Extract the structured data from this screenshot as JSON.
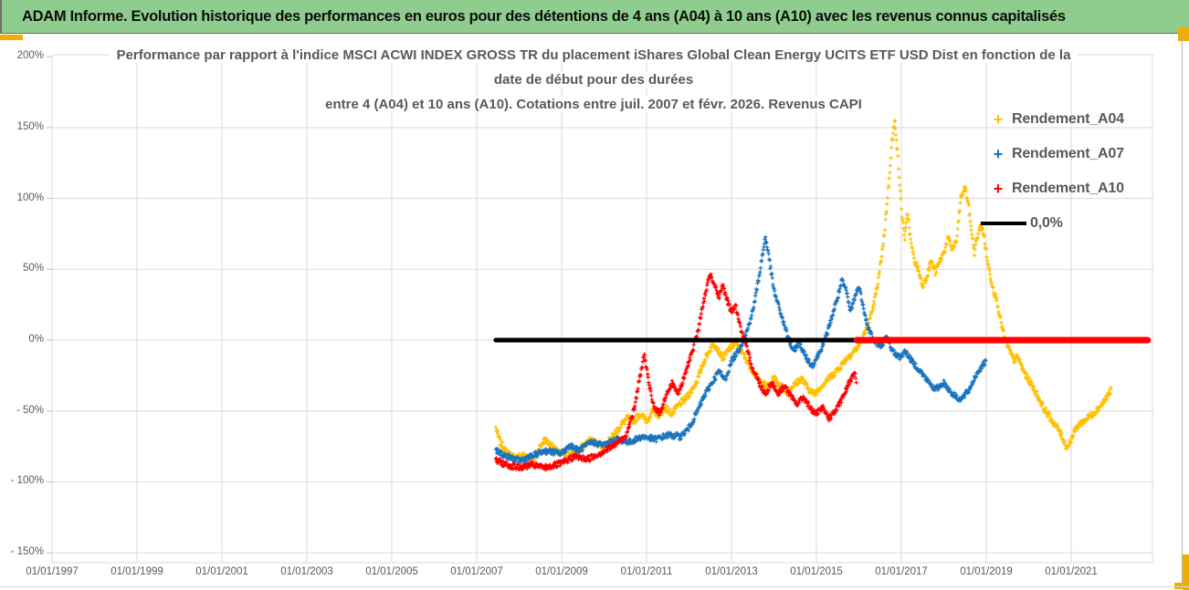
{
  "header": {
    "title": "ADAM Informe. Evolution historique des performances en euros pour des détentions de 4 ans (A04) à 10 ans (A10) avec les revenus connus capitalisés"
  },
  "colors": {
    "header_bg": "#8FCD8F",
    "corner_accent": "#EFAF00",
    "series_a04": "#FFC000",
    "series_a07": "#1B73BE",
    "series_a10": "#FF0000",
    "zero_line_black": "#000000",
    "zero_line_red": "#FF0000",
    "gridline": "#D9D9D9",
    "axis_text": "#595959"
  },
  "chart": {
    "title_line1": "Performance par rapport à l'indice MSCI ACWI INDEX GROSS TR  du placement iShares Global Clean Energy UCITS ETF USD Dist en fonction de la",
    "title_line2": "date de début pour des durées",
    "title_line3": "entre 4 (A04) et 10 ans (A10). Cotations entre juil. 2007 et févr. 2026. Revenus CAPI",
    "legend": [
      {
        "label": "Rendement_A04",
        "color": "#FFC000",
        "marker": "plus"
      },
      {
        "label": "Rendement_A07",
        "color": "#1B73BE",
        "marker": "plus"
      },
      {
        "label": "Rendement_A10",
        "color": "#FF0000",
        "marker": "plus"
      },
      {
        "label": "0,0%",
        "color": "#000000",
        "marker": "line"
      }
    ]
  },
  "chart_data": {
    "type": "scatter",
    "x_axis": {
      "range_years": [
        1997,
        2022.8
      ],
      "ticks": [
        {
          "label": "01/01/1997",
          "year": 1997
        },
        {
          "label": "01/01/1999",
          "year": 1999
        },
        {
          "label": "01/01/2001",
          "year": 2001
        },
        {
          "label": "01/01/2003",
          "year": 2003
        },
        {
          "label": "01/01/2005",
          "year": 2005
        },
        {
          "label": "01/01/2007",
          "year": 2007
        },
        {
          "label": "01/01/2009",
          "year": 2009
        },
        {
          "label": "01/01/2011",
          "year": 2011
        },
        {
          "label": "01/01/2013",
          "year": 2013
        },
        {
          "label": "01/01/2015",
          "year": 2015
        },
        {
          "label": "01/01/2017",
          "year": 2017
        },
        {
          "label": "01/01/2019",
          "year": 2019
        },
        {
          "label": "01/01/2021",
          "year": 2021
        }
      ]
    },
    "y_axis": {
      "range_pct": [
        -157,
        200
      ],
      "ticks": [
        {
          "label": "200%",
          "value": 200
        },
        {
          "label": "150%",
          "value": 150
        },
        {
          "label": "100%",
          "value": 100
        },
        {
          "label": "50%",
          "value": 50
        },
        {
          "label": "0%",
          "value": 0
        },
        {
          "label": "- 50%",
          "value": -50
        },
        {
          "label": "- 100%",
          "value": -100
        },
        {
          "label": "- 150%",
          "value": -150
        }
      ]
    },
    "series": [
      {
        "name": "Rendement_A04",
        "color": "#FFC000",
        "marker": "plus",
        "noise": 2.3,
        "points": [
          [
            2007.45,
            -62
          ],
          [
            2007.55,
            -72
          ],
          [
            2007.7,
            -79
          ],
          [
            2007.9,
            -83
          ],
          [
            2008.1,
            -81
          ],
          [
            2008.35,
            -84
          ],
          [
            2008.5,
            -75
          ],
          [
            2008.6,
            -70
          ],
          [
            2008.75,
            -74
          ],
          [
            2008.9,
            -79
          ],
          [
            2009.1,
            -81
          ],
          [
            2009.35,
            -79
          ],
          [
            2009.5,
            -75
          ],
          [
            2009.7,
            -70
          ],
          [
            2009.85,
            -73
          ],
          [
            2010.0,
            -75
          ],
          [
            2010.2,
            -68
          ],
          [
            2010.4,
            -60
          ],
          [
            2010.55,
            -55
          ],
          [
            2010.7,
            -57
          ],
          [
            2010.85,
            -52
          ],
          [
            2011.0,
            -57
          ],
          [
            2011.15,
            -50
          ],
          [
            2011.3,
            -53
          ],
          [
            2011.45,
            -48
          ],
          [
            2011.6,
            -52
          ],
          [
            2011.75,
            -46
          ],
          [
            2011.9,
            -42
          ],
          [
            2012.05,
            -36
          ],
          [
            2012.2,
            -28
          ],
          [
            2012.35,
            -15
          ],
          [
            2012.5,
            -6
          ],
          [
            2012.6,
            -2
          ],
          [
            2012.7,
            -8
          ],
          [
            2012.8,
            -13
          ],
          [
            2012.95,
            -6
          ],
          [
            2013.1,
            -2
          ],
          [
            2013.25,
            -9
          ],
          [
            2013.4,
            -16
          ],
          [
            2013.55,
            -24
          ],
          [
            2013.7,
            -30
          ],
          [
            2013.85,
            -33
          ],
          [
            2014.0,
            -27
          ],
          [
            2014.15,
            -32
          ],
          [
            2014.3,
            -36
          ],
          [
            2014.5,
            -31
          ],
          [
            2014.65,
            -27
          ],
          [
            2014.8,
            -34
          ],
          [
            2014.95,
            -38
          ],
          [
            2015.1,
            -33
          ],
          [
            2015.25,
            -28
          ],
          [
            2015.4,
            -24
          ],
          [
            2015.55,
            -19
          ],
          [
            2015.7,
            -13
          ],
          [
            2015.85,
            -9
          ],
          [
            2016.0,
            -4
          ],
          [
            2016.15,
            5
          ],
          [
            2016.3,
            18
          ],
          [
            2016.45,
            40
          ],
          [
            2016.6,
            75
          ],
          [
            2016.7,
            110
          ],
          [
            2016.78,
            140
          ],
          [
            2016.85,
            156
          ],
          [
            2016.92,
            128
          ],
          [
            2017.0,
            92
          ],
          [
            2017.08,
            72
          ],
          [
            2017.15,
            90
          ],
          [
            2017.22,
            70
          ],
          [
            2017.3,
            57
          ],
          [
            2017.4,
            50
          ],
          [
            2017.5,
            38
          ],
          [
            2017.6,
            45
          ],
          [
            2017.7,
            56
          ],
          [
            2017.8,
            48
          ],
          [
            2017.9,
            55
          ],
          [
            2018.0,
            62
          ],
          [
            2018.1,
            72
          ],
          [
            2018.2,
            64
          ],
          [
            2018.3,
            70
          ],
          [
            2018.4,
            100
          ],
          [
            2018.5,
            108
          ],
          [
            2018.58,
            96
          ],
          [
            2018.65,
            78
          ],
          [
            2018.72,
            62
          ],
          [
            2018.8,
            74
          ],
          [
            2018.88,
            82
          ],
          [
            2018.95,
            72
          ],
          [
            2019.05,
            52
          ],
          [
            2019.15,
            38
          ],
          [
            2019.25,
            28
          ],
          [
            2019.35,
            12
          ],
          [
            2019.45,
            0
          ],
          [
            2019.55,
            -8
          ],
          [
            2019.65,
            -14
          ],
          [
            2019.75,
            -12
          ],
          [
            2019.85,
            -20
          ],
          [
            2019.95,
            -26
          ],
          [
            2020.1,
            -33
          ],
          [
            2020.25,
            -42
          ],
          [
            2020.4,
            -50
          ],
          [
            2020.55,
            -57
          ],
          [
            2020.7,
            -63
          ],
          [
            2020.8,
            -69
          ],
          [
            2020.9,
            -76
          ],
          [
            2021.0,
            -70
          ],
          [
            2021.1,
            -63
          ],
          [
            2021.2,
            -59
          ],
          [
            2021.35,
            -56
          ],
          [
            2021.5,
            -52
          ],
          [
            2021.65,
            -48
          ],
          [
            2021.8,
            -42
          ],
          [
            2021.95,
            -35
          ]
        ]
      },
      {
        "name": "Rendement_A07",
        "color": "#1B73BE",
        "marker": "plus",
        "noise": 2.0,
        "points": [
          [
            2007.45,
            -78
          ],
          [
            2007.7,
            -82
          ],
          [
            2008.0,
            -85
          ],
          [
            2008.3,
            -82
          ],
          [
            2008.6,
            -78
          ],
          [
            2009.0,
            -80
          ],
          [
            2009.2,
            -74
          ],
          [
            2009.4,
            -78
          ],
          [
            2009.7,
            -72
          ],
          [
            2010.0,
            -74
          ],
          [
            2010.3,
            -70
          ],
          [
            2010.6,
            -72
          ],
          [
            2010.9,
            -68
          ],
          [
            2011.2,
            -70
          ],
          [
            2011.5,
            -67
          ],
          [
            2011.8,
            -68
          ],
          [
            2012.0,
            -62
          ],
          [
            2012.2,
            -50
          ],
          [
            2012.35,
            -40
          ],
          [
            2012.5,
            -32
          ],
          [
            2012.6,
            -27
          ],
          [
            2012.7,
            -22
          ],
          [
            2012.85,
            -28
          ],
          [
            2013.0,
            -15
          ],
          [
            2013.2,
            -5
          ],
          [
            2013.35,
            5
          ],
          [
            2013.5,
            20
          ],
          [
            2013.65,
            45
          ],
          [
            2013.8,
            73
          ],
          [
            2013.9,
            55
          ],
          [
            2014.0,
            35
          ],
          [
            2014.15,
            20
          ],
          [
            2014.3,
            5
          ],
          [
            2014.45,
            -8
          ],
          [
            2014.6,
            -2
          ],
          [
            2014.75,
            -12
          ],
          [
            2014.9,
            -18
          ],
          [
            2015.05,
            -10
          ],
          [
            2015.2,
            0
          ],
          [
            2015.35,
            15
          ],
          [
            2015.5,
            30
          ],
          [
            2015.6,
            42
          ],
          [
            2015.7,
            35
          ],
          [
            2015.8,
            20
          ],
          [
            2015.9,
            30
          ],
          [
            2016.0,
            38
          ],
          [
            2016.1,
            25
          ],
          [
            2016.2,
            10
          ],
          [
            2016.35,
            0
          ],
          [
            2016.5,
            -5
          ],
          [
            2016.65,
            2
          ],
          [
            2016.8,
            -8
          ],
          [
            2016.95,
            -12
          ],
          [
            2017.1,
            -8
          ],
          [
            2017.25,
            -15
          ],
          [
            2017.4,
            -20
          ],
          [
            2017.6,
            -28
          ],
          [
            2017.8,
            -35
          ],
          [
            2018.0,
            -30
          ],
          [
            2018.2,
            -38
          ],
          [
            2018.4,
            -42
          ],
          [
            2018.6,
            -35
          ],
          [
            2018.75,
            -25
          ],
          [
            2018.9,
            -18
          ],
          [
            2019.0,
            -15
          ]
        ]
      },
      {
        "name": "Rendement_A10",
        "color": "#FF0000",
        "marker": "plus",
        "noise": 2.0,
        "points": [
          [
            2007.45,
            -85
          ],
          [
            2007.7,
            -88
          ],
          [
            2008.0,
            -90
          ],
          [
            2008.3,
            -88
          ],
          [
            2008.6,
            -90
          ],
          [
            2009.0,
            -87
          ],
          [
            2009.3,
            -82
          ],
          [
            2009.6,
            -84
          ],
          [
            2009.9,
            -80
          ],
          [
            2010.2,
            -75
          ],
          [
            2010.5,
            -68
          ],
          [
            2010.7,
            -50
          ],
          [
            2010.85,
            -25
          ],
          [
            2010.95,
            -10
          ],
          [
            2011.05,
            -30
          ],
          [
            2011.15,
            -45
          ],
          [
            2011.3,
            -52
          ],
          [
            2011.45,
            -40
          ],
          [
            2011.6,
            -30
          ],
          [
            2011.75,
            -38
          ],
          [
            2011.9,
            -25
          ],
          [
            2012.0,
            -15
          ],
          [
            2012.1,
            -5
          ],
          [
            2012.2,
            5
          ],
          [
            2012.3,
            20
          ],
          [
            2012.4,
            35
          ],
          [
            2012.5,
            47
          ],
          [
            2012.6,
            40
          ],
          [
            2012.7,
            30
          ],
          [
            2012.8,
            38
          ],
          [
            2012.9,
            28
          ],
          [
            2013.0,
            20
          ],
          [
            2013.1,
            25
          ],
          [
            2013.2,
            10
          ],
          [
            2013.35,
            -5
          ],
          [
            2013.5,
            -20
          ],
          [
            2013.65,
            -30
          ],
          [
            2013.8,
            -38
          ],
          [
            2013.95,
            -30
          ],
          [
            2014.1,
            -38
          ],
          [
            2014.25,
            -32
          ],
          [
            2014.4,
            -40
          ],
          [
            2014.55,
            -45
          ],
          [
            2014.7,
            -40
          ],
          [
            2014.85,
            -48
          ],
          [
            2015.0,
            -52
          ],
          [
            2015.15,
            -48
          ],
          [
            2015.3,
            -55
          ],
          [
            2015.45,
            -50
          ],
          [
            2015.6,
            -42
          ],
          [
            2015.7,
            -35
          ],
          [
            2015.8,
            -28
          ],
          [
            2015.9,
            -22
          ],
          [
            2015.95,
            -30
          ]
        ]
      }
    ],
    "reference_lines": [
      {
        "name": "zero-line-black",
        "y": 0,
        "x_start": 2007.45,
        "x_end": 2015.95,
        "color": "#000000",
        "width": 5
      },
      {
        "name": "zero-line-red",
        "y": 0,
        "x_start": 2015.95,
        "x_end": 2022.8,
        "color": "#FF0000",
        "width": 7
      }
    ],
    "grid": true,
    "legend_position": "right"
  }
}
